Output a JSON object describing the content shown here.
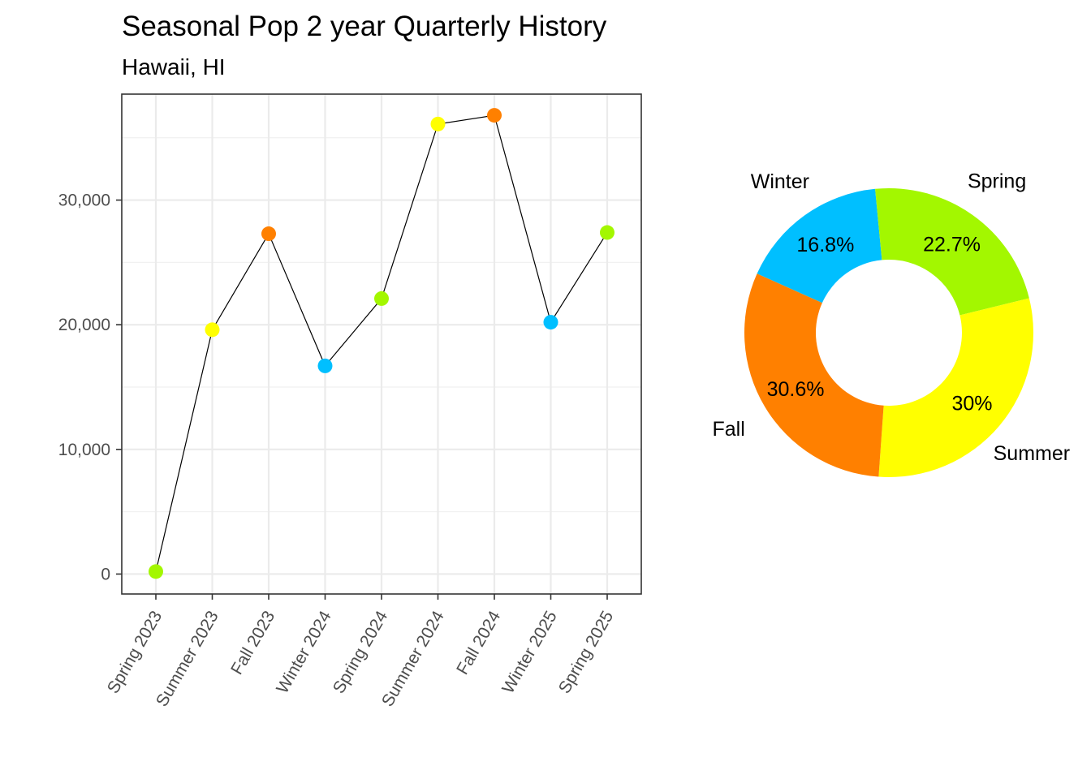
{
  "chart_data": [
    {
      "type": "line",
      "title": "Seasonal Pop 2 year Quarterly History",
      "subtitle": "Hawaii, HI",
      "xlabel": "",
      "ylabel": "",
      "categories": [
        "Spring 2023",
        "Summer 2023",
        "Fall 2023",
        "Winter 2024",
        "Spring 2024",
        "Summer 2024",
        "Fall 2024",
        "Winter 2025",
        "Spring 2025"
      ],
      "seasons": [
        "Spring",
        "Summer",
        "Fall",
        "Winter",
        "Spring",
        "Summer",
        "Fall",
        "Winter",
        "Spring"
      ],
      "values": [
        200,
        19600,
        27300,
        16700,
        22100,
        36100,
        36800,
        20200,
        27400
      ],
      "ylim": [
        -1600,
        38500
      ],
      "yticks": [
        0,
        10000,
        20000,
        30000
      ],
      "ytick_labels": [
        "0",
        "10,000",
        "20,000",
        "30,000"
      ],
      "grid": true,
      "line_color": "#000000",
      "season_colors": {
        "Spring": "#a3f700",
        "Summer": "#ffff00",
        "Fall": "#ff8000",
        "Winter": "#00bfff"
      }
    },
    {
      "type": "pie",
      "donut": true,
      "slices": [
        {
          "name": "Winter",
          "value": 16.8,
          "label": "16.8%",
          "color": "#00bfff"
        },
        {
          "name": "Spring",
          "value": 22.7,
          "label": "22.7%",
          "color": "#a3f700"
        },
        {
          "name": "Summer",
          "value": 30.0,
          "label": "30%",
          "color": "#ffff00"
        },
        {
          "name": "Fall",
          "value": 30.6,
          "label": "30.6%",
          "color": "#ff8000"
        }
      ]
    }
  ]
}
